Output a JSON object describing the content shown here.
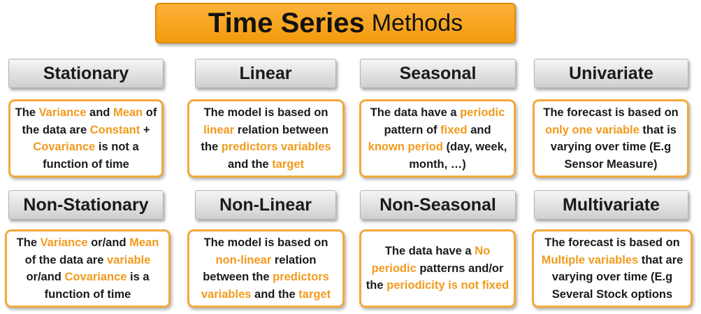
{
  "title": {
    "bold": "Time Series",
    "light": "Methods"
  },
  "colors": {
    "title_bg": "#f7a51c",
    "card_border": "#f2a93b",
    "highlight": "#f29a1d",
    "header_bg": "#e4e4e4"
  },
  "methods": [
    {
      "header": "Stationary",
      "desc": [
        {
          "t": "The ",
          "h": false
        },
        {
          "t": "Variance",
          "h": true
        },
        {
          "t": " and ",
          "h": false
        },
        {
          "t": "Mean",
          "h": true
        },
        {
          "t": " of the data are ",
          "h": false
        },
        {
          "t": "Constant",
          "h": true
        },
        {
          "t": " + ",
          "h": false
        },
        {
          "t": "Covariance",
          "h": true
        },
        {
          "t": " is not a function of time",
          "h": false
        }
      ]
    },
    {
      "header": "Linear",
      "desc": [
        {
          "t": "The model is based on ",
          "h": false
        },
        {
          "t": "linear",
          "h": true
        },
        {
          "t": " relation between the ",
          "h": false
        },
        {
          "t": "predictors variables",
          "h": true
        },
        {
          "t": " and the ",
          "h": false
        },
        {
          "t": "target",
          "h": true
        }
      ]
    },
    {
      "header": "Seasonal",
      "desc": [
        {
          "t": "The data have a ",
          "h": false
        },
        {
          "t": "periodic",
          "h": true
        },
        {
          "t": " pattern of ",
          "h": false
        },
        {
          "t": "fixed",
          "h": true
        },
        {
          "t": " and ",
          "h": false
        },
        {
          "t": "known period",
          "h": true
        },
        {
          "t": " (day, week, month, …)",
          "h": false
        }
      ]
    },
    {
      "header": "Univariate",
      "desc": [
        {
          "t": "The forecast is based on ",
          "h": false
        },
        {
          "t": "only one variable",
          "h": true
        },
        {
          "t": " that is varying over time (E.g Sensor Measure)",
          "h": false
        }
      ]
    },
    {
      "header": "Non-Stationary",
      "desc": [
        {
          "t": "The ",
          "h": false
        },
        {
          "t": "Variance",
          "h": true
        },
        {
          "t": " or/and ",
          "h": false
        },
        {
          "t": "Mean",
          "h": true
        },
        {
          "t": " of the data are ",
          "h": false
        },
        {
          "t": "variable",
          "h": true
        },
        {
          "t": " or/and ",
          "h": false
        },
        {
          "t": "Covariance",
          "h": true
        },
        {
          "t": " is a function of time",
          "h": false
        }
      ]
    },
    {
      "header": "Non-Linear",
      "desc": [
        {
          "t": "The model is based on ",
          "h": false
        },
        {
          "t": "non-linear",
          "h": true
        },
        {
          "t": " relation between the ",
          "h": false
        },
        {
          "t": "predictors variables",
          "h": true
        },
        {
          "t": " and the ",
          "h": false
        },
        {
          "t": "target",
          "h": true
        }
      ]
    },
    {
      "header": "Non-Seasonal",
      "desc": [
        {
          "t": "The data have a ",
          "h": false
        },
        {
          "t": "No periodic",
          "h": true
        },
        {
          "t": " patterns and/or the ",
          "h": false
        },
        {
          "t": "periodicity is not fixed",
          "h": true
        }
      ]
    },
    {
      "header": "Multivariate",
      "desc": [
        {
          "t": "The forecast is based on ",
          "h": false
        },
        {
          "t": "Multiple variables",
          "h": true
        },
        {
          "t": " that are varying over time (E.g Several Stock options",
          "h": false
        }
      ]
    }
  ]
}
